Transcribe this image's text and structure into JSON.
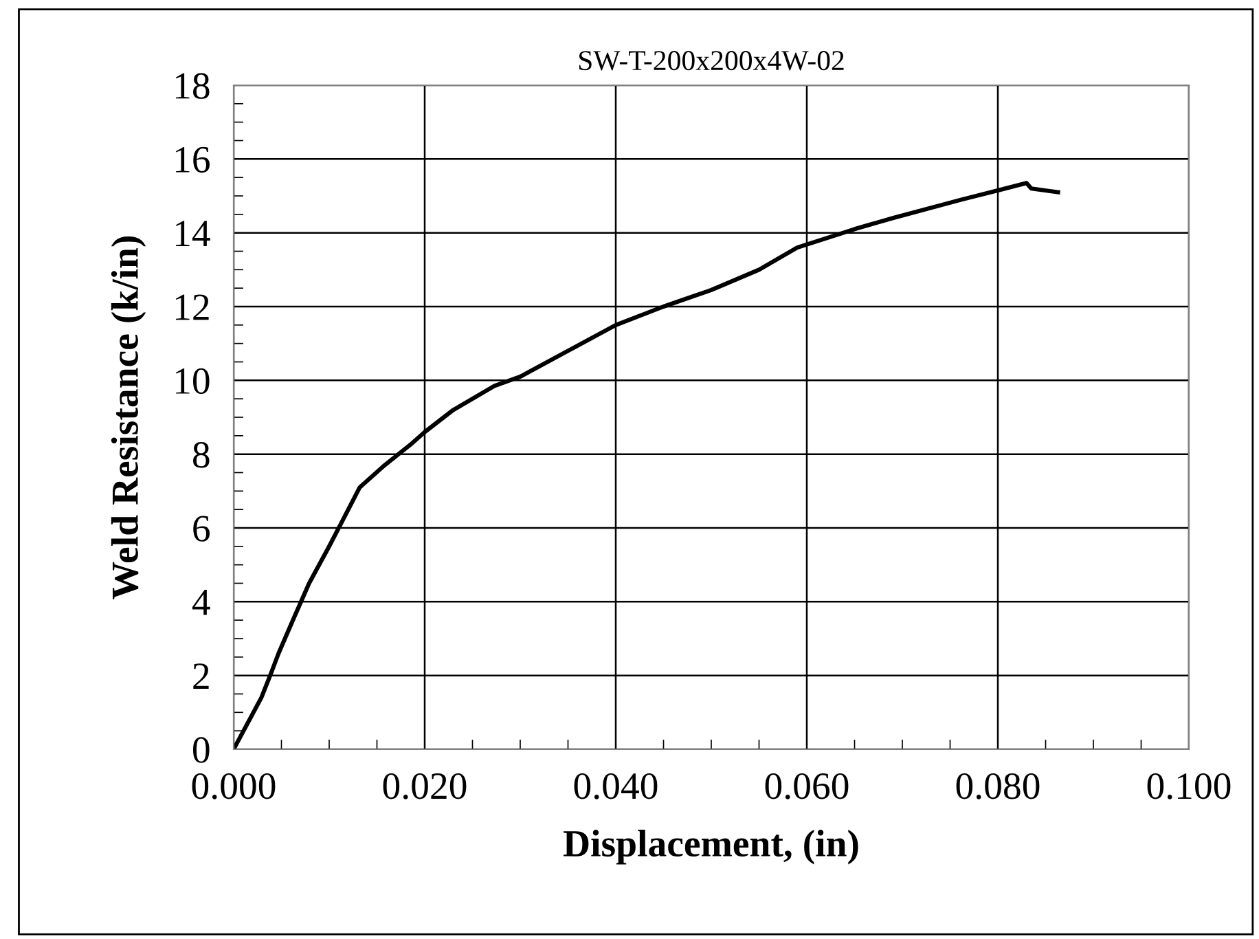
{
  "chart_data": {
    "type": "line",
    "title": "SW-T-200x200x4W-02",
    "xlabel": "Displacement, (in)",
    "ylabel": "Weld Resistance (k/in)",
    "x": [
      0,
      0.0029,
      0.0039,
      0.0047,
      0.0062,
      0.0079,
      0.01,
      0.0115,
      0.0132,
      0.0158,
      0.0187,
      0.02,
      0.023,
      0.0273,
      0.03,
      0.035,
      0.04,
      0.045,
      0.05,
      0.055,
      0.059,
      0.065,
      0.069,
      0.0762,
      0.08,
      0.083,
      0.0835,
      0.0863
    ],
    "series": [
      {
        "color": "#000000",
        "values": [
          0,
          1.4,
          2.05,
          2.6,
          3.5,
          4.5,
          5.5,
          6.25,
          7.1,
          7.7,
          8.3,
          8.6,
          9.2,
          9.85,
          10.1,
          10.8,
          11.5,
          12.0,
          12.45,
          13.0,
          13.6,
          14.1,
          14.4,
          14.9,
          15.15,
          15.35,
          15.2,
          15.1
        ]
      }
    ],
    "xlim": [
      0,
      0.1
    ],
    "xticks": [
      {
        "value": 0,
        "label": "0.000"
      },
      {
        "value": 0.02,
        "label": "0.020"
      },
      {
        "value": 0.04,
        "label": "0.040"
      },
      {
        "value": 0.06,
        "label": "0.060"
      },
      {
        "value": 0.08,
        "label": "0.080"
      },
      {
        "value": 0.1,
        "label": "0.100"
      }
    ],
    "ylim": [
      0,
      18
    ],
    "yticks": [
      0,
      2,
      4,
      6,
      8,
      10,
      12,
      14,
      16,
      18
    ],
    "grid": true,
    "legend": false,
    "marker": "none",
    "line_style": "solid"
  }
}
